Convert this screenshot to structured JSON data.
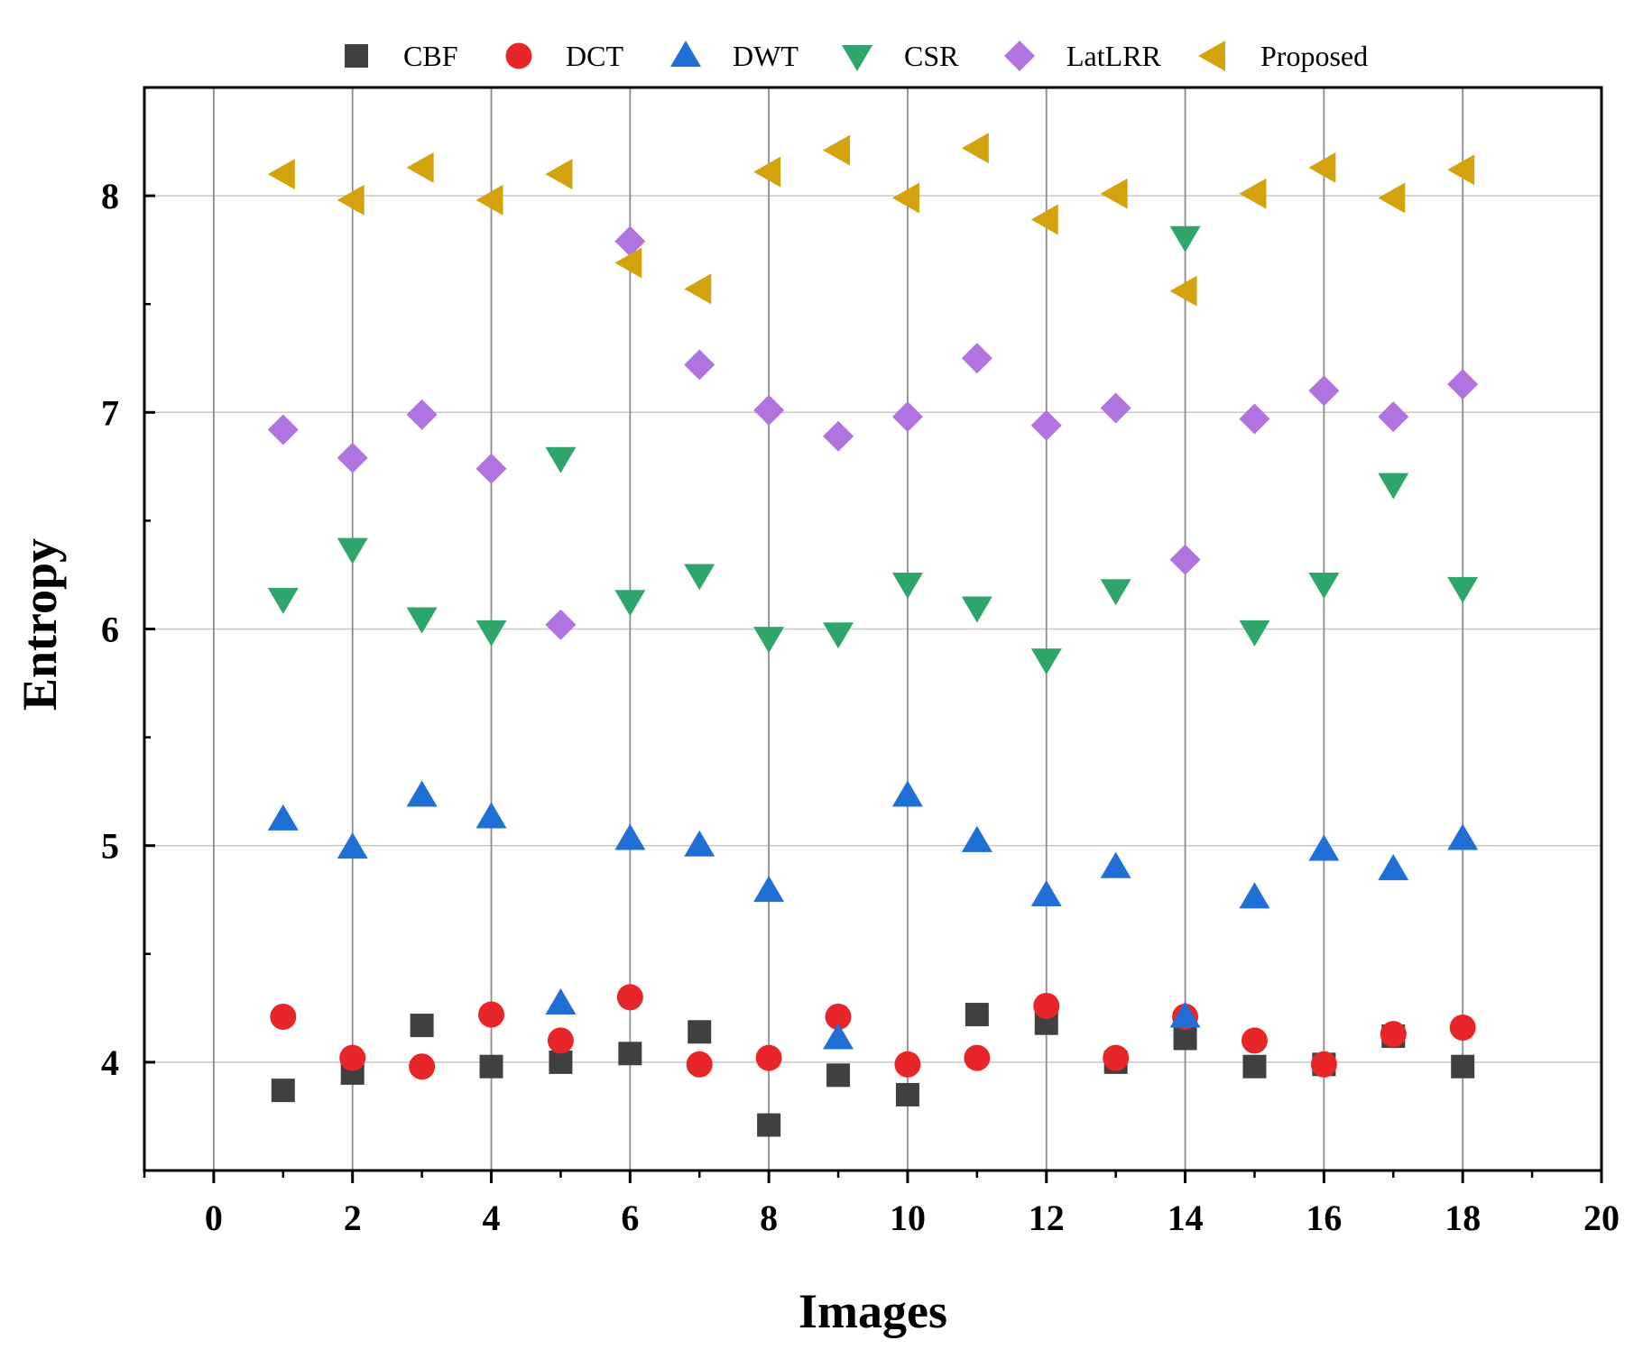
{
  "chart_data": {
    "type": "scatter",
    "title": "",
    "xlabel": "Images",
    "ylabel": "Entropy",
    "xlim": [
      -1,
      20
    ],
    "ylim": [
      3.5,
      8.5
    ],
    "xticks": [
      0,
      2,
      4,
      6,
      8,
      10,
      12,
      14,
      16,
      18,
      20
    ],
    "yticks": [
      4,
      5,
      6,
      7,
      8
    ],
    "x_tick_labels": [
      "0",
      "2",
      "4",
      "6",
      "8",
      "10",
      "12",
      "14",
      "16",
      "18",
      "20"
    ],
    "y_tick_labels": [
      "4",
      "5",
      "6",
      "7",
      "8"
    ],
    "grid": true,
    "legend_position": "top",
    "x": [
      1,
      2,
      3,
      4,
      5,
      6,
      7,
      8,
      9,
      10,
      11,
      12,
      13,
      14,
      15,
      16,
      17,
      18
    ],
    "series": [
      {
        "name": "CBF",
        "marker": "square",
        "color": "#404040",
        "values": [
          3.87,
          3.95,
          4.17,
          3.98,
          4.0,
          4.04,
          4.14,
          3.71,
          3.94,
          3.85,
          4.22,
          4.18,
          4.0,
          4.11,
          3.98,
          3.99,
          4.12,
          3.98
        ]
      },
      {
        "name": "DCT",
        "marker": "circle",
        "color": "#e8262a",
        "values": [
          4.21,
          4.02,
          3.98,
          4.22,
          4.1,
          4.3,
          3.99,
          4.02,
          4.21,
          3.99,
          4.02,
          4.26,
          4.02,
          4.21,
          4.1,
          3.99,
          4.13,
          4.16
        ]
      },
      {
        "name": "DWT",
        "marker": "triangle-up",
        "color": "#1f6fd6",
        "values": [
          5.12,
          4.99,
          5.23,
          5.13,
          4.27,
          5.03,
          5.0,
          4.79,
          4.11,
          5.23,
          5.02,
          4.77,
          4.9,
          4.21,
          4.76,
          4.98,
          4.89,
          5.03
        ]
      },
      {
        "name": "CSR",
        "marker": "triangle-down",
        "color": "#2ea66b",
        "values": [
          6.14,
          6.37,
          6.05,
          5.99,
          6.79,
          6.13,
          6.25,
          5.96,
          5.98,
          6.21,
          6.1,
          5.86,
          6.18,
          7.81,
          5.99,
          6.21,
          6.67,
          6.19
        ]
      },
      {
        "name": "LatLRR",
        "marker": "diamond",
        "color": "#b173e0",
        "values": [
          6.92,
          6.79,
          6.99,
          6.74,
          6.02,
          7.79,
          7.22,
          7.01,
          6.89,
          6.98,
          7.25,
          6.94,
          7.02,
          6.32,
          6.97,
          7.1,
          6.98,
          7.13
        ]
      },
      {
        "name": "Proposed",
        "marker": "triangle-left",
        "color": "#d4a20c",
        "values": [
          8.1,
          7.98,
          8.13,
          7.98,
          8.1,
          7.69,
          7.57,
          8.11,
          8.21,
          7.99,
          8.22,
          7.89,
          8.01,
          7.56,
          8.01,
          8.13,
          7.99,
          8.12
        ]
      }
    ]
  }
}
